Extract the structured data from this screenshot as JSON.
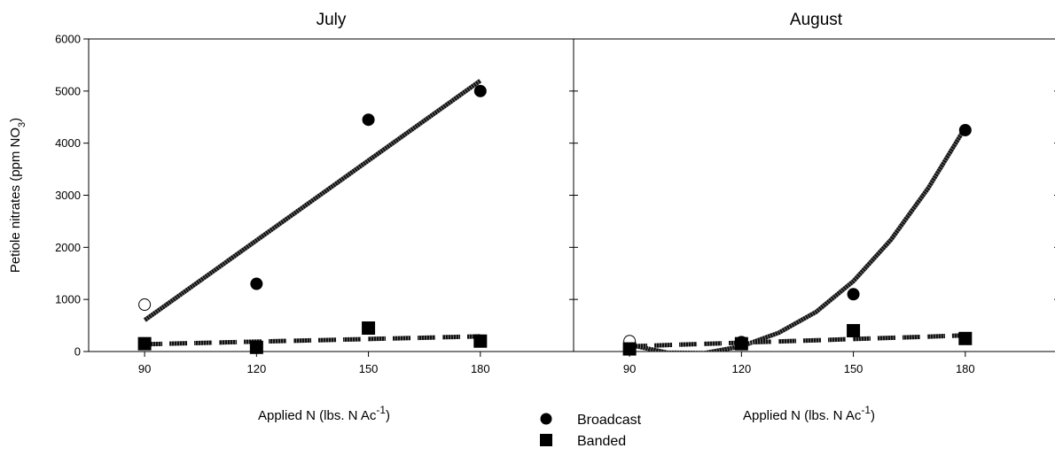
{
  "chart_data": {
    "type": "scatter",
    "ylabel": "Petiole nitrates (ppm NO",
    "ylabel_sub": "3",
    "ylabel_close": ")",
    "ylim": [
      0,
      6000
    ],
    "yticks": [
      "0",
      "1000",
      "2000",
      "3000",
      "4000",
      "5000",
      "6000"
    ],
    "xlim": [
      75,
      205
    ],
    "xticks": [
      90,
      120,
      150,
      180
    ],
    "xlabel": "Applied  N (lbs.  N Ac",
    "xlabel_sup": "-1",
    "xlabel_close": ")",
    "legend": {
      "placement": "bottom-center",
      "entries": [
        {
          "label": "Broadcast",
          "marker": "circle"
        },
        {
          "label": "Banded",
          "marker": "square"
        }
      ]
    },
    "panels": [
      {
        "title": "July",
        "series": [
          {
            "name": "Broadcast",
            "marker": "circle",
            "points": [
              [
                90,
                900,
                "open"
              ],
              [
                120,
                1300
              ],
              [
                150,
                4450
              ],
              [
                180,
                5000
              ]
            ]
          },
          {
            "name": "Banded",
            "marker": "square",
            "points": [
              [
                90,
                150
              ],
              [
                120,
                80
              ],
              [
                150,
                450
              ],
              [
                180,
                200
              ]
            ]
          }
        ],
        "fits": [
          {
            "series": "Broadcast",
            "style": "solid",
            "x": [
              90,
              180
            ],
            "y": [
              600,
              5200
            ]
          },
          {
            "series": "Banded",
            "style": "dashed",
            "x": [
              90,
              180
            ],
            "y": [
              140,
              290
            ]
          }
        ]
      },
      {
        "title": "August",
        "series": [
          {
            "name": "Broadcast",
            "marker": "circle",
            "points": [
              [
                90,
                200,
                "open"
              ],
              [
                120,
                180
              ],
              [
                150,
                1100
              ],
              [
                180,
                4250
              ]
            ]
          },
          {
            "name": "Banded",
            "marker": "square",
            "points": [
              [
                90,
                50
              ],
              [
                120,
                150
              ],
              [
                150,
                400
              ],
              [
                180,
                250
              ]
            ]
          }
        ],
        "fits": [
          {
            "series": "Broadcast",
            "style": "solid",
            "x": [
              90,
              100,
              110,
              120,
              130,
              140,
              150,
              160,
              170,
              180
            ],
            "y": [
              130,
              -20,
              -30,
              100,
              360,
              760,
              1350,
              2140,
              3130,
              4300
            ]
          },
          {
            "series": "Banded",
            "style": "dashed",
            "x": [
              90,
              180
            ],
            "y": [
              100,
              310
            ]
          }
        ]
      }
    ]
  }
}
